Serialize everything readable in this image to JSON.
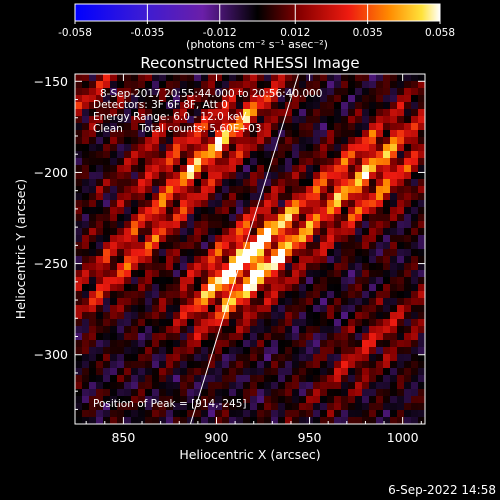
{
  "colorbar": {
    "tick_labels": [
      "-0.058",
      "-0.035",
      "-0.012",
      "0.012",
      "0.035",
      "0.058"
    ],
    "tick_values": [
      -0.058,
      -0.035,
      -0.012,
      0.012,
      0.035,
      0.058
    ],
    "unit_label": "(photons cm⁻² s⁻¹ asec⁻²)"
  },
  "info": {
    "time_range": "8-Sep-2017 20:55:44.000 to 20:56:40.000",
    "detectors": "Detectors: 3F 6F 8F, Att 0",
    "energy": "Energy Range: 6.0 - 12.0 keV",
    "clean": "Clean     Total counts: 5.60E+03",
    "peak": "Position of Peak = [914,-245]"
  },
  "date_stamp": "6-Sep-2022 14:58",
  "chart_data": {
    "type": "heatmap",
    "title": "Reconstructed RHESSI Image",
    "xlabel": "Heliocentric X (arcsec)",
    "ylabel": "Heliocentric Y (arcsec)",
    "xlim": [
      824,
      1012
    ],
    "ylim": [
      -338,
      -146
    ],
    "xticks": [
      850,
      900,
      950,
      1000
    ],
    "yticks": [
      -150,
      -200,
      -250,
      -300
    ],
    "xtick_labels": [
      "850",
      "900",
      "950",
      "1000"
    ],
    "ytick_labels": [
      "−150",
      "−200",
      "−250",
      "−300"
    ],
    "zlim": [
      -0.058,
      0.058
    ],
    "peak": [
      914,
      -245
    ],
    "limb_line": [
      [
        886,
        -338
      ],
      [
        944,
        -146
      ]
    ],
    "sources": [
      {
        "x": 914,
        "y": -245,
        "amp": 0.058
      },
      {
        "x": 923,
        "y": -256,
        "amp": 0.045
      },
      {
        "x": 907,
        "y": -178,
        "amp": 0.04
      },
      {
        "x": 978,
        "y": -194,
        "amp": 0.04
      },
      {
        "x": 988,
        "y": -208,
        "amp": 0.03
      },
      {
        "x": 848,
        "y": -252,
        "amp": 0.03
      },
      {
        "x": 880,
        "y": -210,
        "amp": 0.022
      },
      {
        "x": 982,
        "y": -296,
        "amp": 0.022
      },
      {
        "x": 832,
        "y": -158,
        "amp": 0.02
      },
      {
        "x": 868,
        "y": -188,
        "amp": 0.018
      }
    ],
    "colormap": "rhessi-diverging (blue-purple-black-red-yellow-white)"
  }
}
